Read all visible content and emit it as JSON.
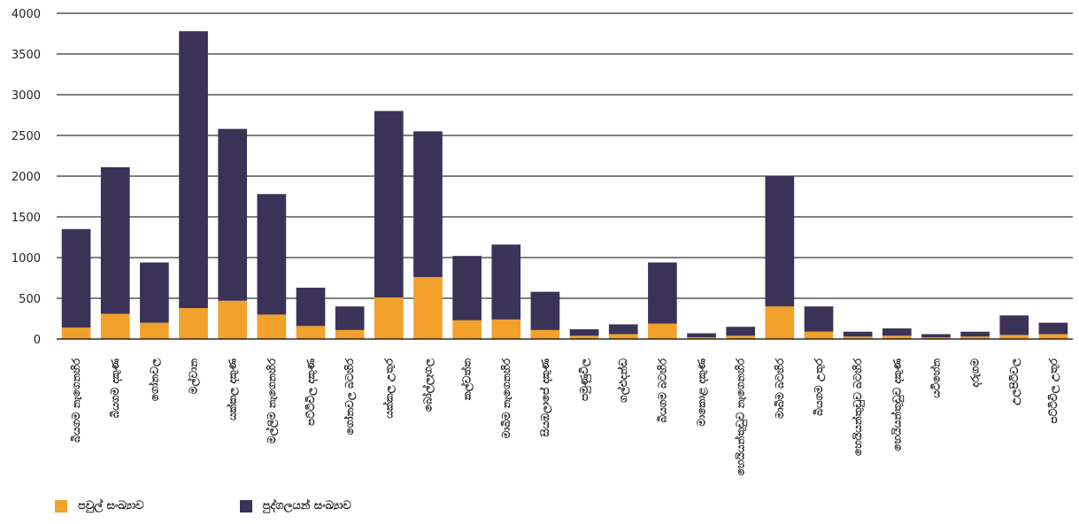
{
  "chart_data": {
    "type": "bar",
    "stacked": true,
    "ylim": [
      0,
      4000
    ],
    "yticks": [
      0,
      500,
      1000,
      1500,
      2000,
      2500,
      3000,
      3500,
      4000
    ],
    "grid": true,
    "legend_position": "bottom-left",
    "categories": [
      "බියගම නැගෙනහිර",
      "බියගම දකුණ",
      "ගෝනවල",
      "මල්වාන",
      "යක්කල දකුණ",
      "මල්ලිම නැගෙනහිර",
      "පට්ටිවිල දකුණ",
      "ගෝනවල බටහිර",
      "යක්කල උතුර",
      "බෝල්ලෑගල",
      "කල්වත්ත",
      "මාබිම නැගෙනහිර",
      "සියඹලාපේ දකුණ",
      "පමුණුවිල",
      "ගල්එදන්ඩ",
      "බියගම බටහිර",
      "මාකොළ දකුණ",
      "හෙයියන්තුඩුව නැගෙනහිර",
      "මාබිම බටහිර",
      "බියගම උතුර",
      "හෙයියන්තුඩුව බටහිර",
      "හෙයියන්තුඩුව දකුණ",
      "යටිහේන",
      "දරුගම",
      "උලපිටිවල",
      "පට්ටිවිල උතුර"
    ],
    "series": [
      {
        "name": "පවුල් සංඛ්‍යාව",
        "color": "#f2a12b",
        "values": [
          140,
          310,
          200,
          380,
          470,
          300,
          160,
          110,
          510,
          760,
          230,
          240,
          110,
          40,
          60,
          190,
          20,
          40,
          400,
          90,
          30,
          40,
          20,
          30,
          50,
          60
        ]
      },
      {
        "name": "පුද්ගලයන් සංඛ්‍යාව",
        "color": "#3b3257",
        "values": [
          1210,
          1800,
          740,
          3400,
          2110,
          1480,
          470,
          290,
          2290,
          1790,
          790,
          920,
          470,
          80,
          120,
          750,
          50,
          110,
          1600,
          310,
          60,
          90,
          40,
          60,
          240,
          140
        ]
      }
    ]
  }
}
